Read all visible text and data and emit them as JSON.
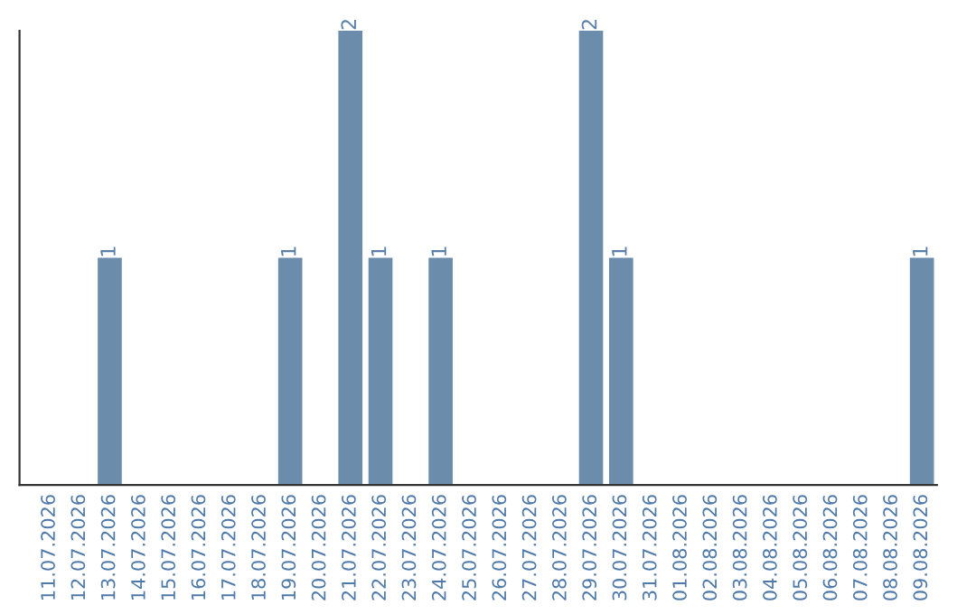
{
  "chart_data": {
    "type": "bar",
    "categories": [
      "11.07.2026",
      "12.07.2026",
      "13.07.2026",
      "14.07.2026",
      "15.07.2026",
      "16.07.2026",
      "17.07.2026",
      "18.07.2026",
      "19.07.2026",
      "20.07.2026",
      "21.07.2026",
      "22.07.2026",
      "23.07.2026",
      "24.07.2026",
      "25.07.2026",
      "26.07.2026",
      "27.07.2026",
      "28.07.2026",
      "29.07.2026",
      "30.07.2026",
      "31.07.2026",
      "01.08.2026",
      "02.08.2026",
      "03.08.2026",
      "04.08.2026",
      "05.08.2026",
      "06.08.2026",
      "07.08.2026",
      "08.08.2026",
      "09.08.2026"
    ],
    "values": [
      0,
      0,
      1,
      0,
      0,
      0,
      0,
      0,
      1,
      0,
      2,
      1,
      0,
      1,
      0,
      0,
      0,
      0,
      2,
      1,
      0,
      0,
      0,
      0,
      0,
      0,
      0,
      0,
      0,
      1
    ],
    "color": "#6b8cab",
    "value_labels": [
      null,
      null,
      "1",
      null,
      null,
      null,
      null,
      null,
      "1",
      null,
      "2",
      "1",
      null,
      "1",
      null,
      null,
      null,
      null,
      "2",
      "1",
      null,
      null,
      null,
      null,
      null,
      null,
      null,
      null,
      null,
      "1"
    ],
    "grid": false,
    "legend": false
  }
}
